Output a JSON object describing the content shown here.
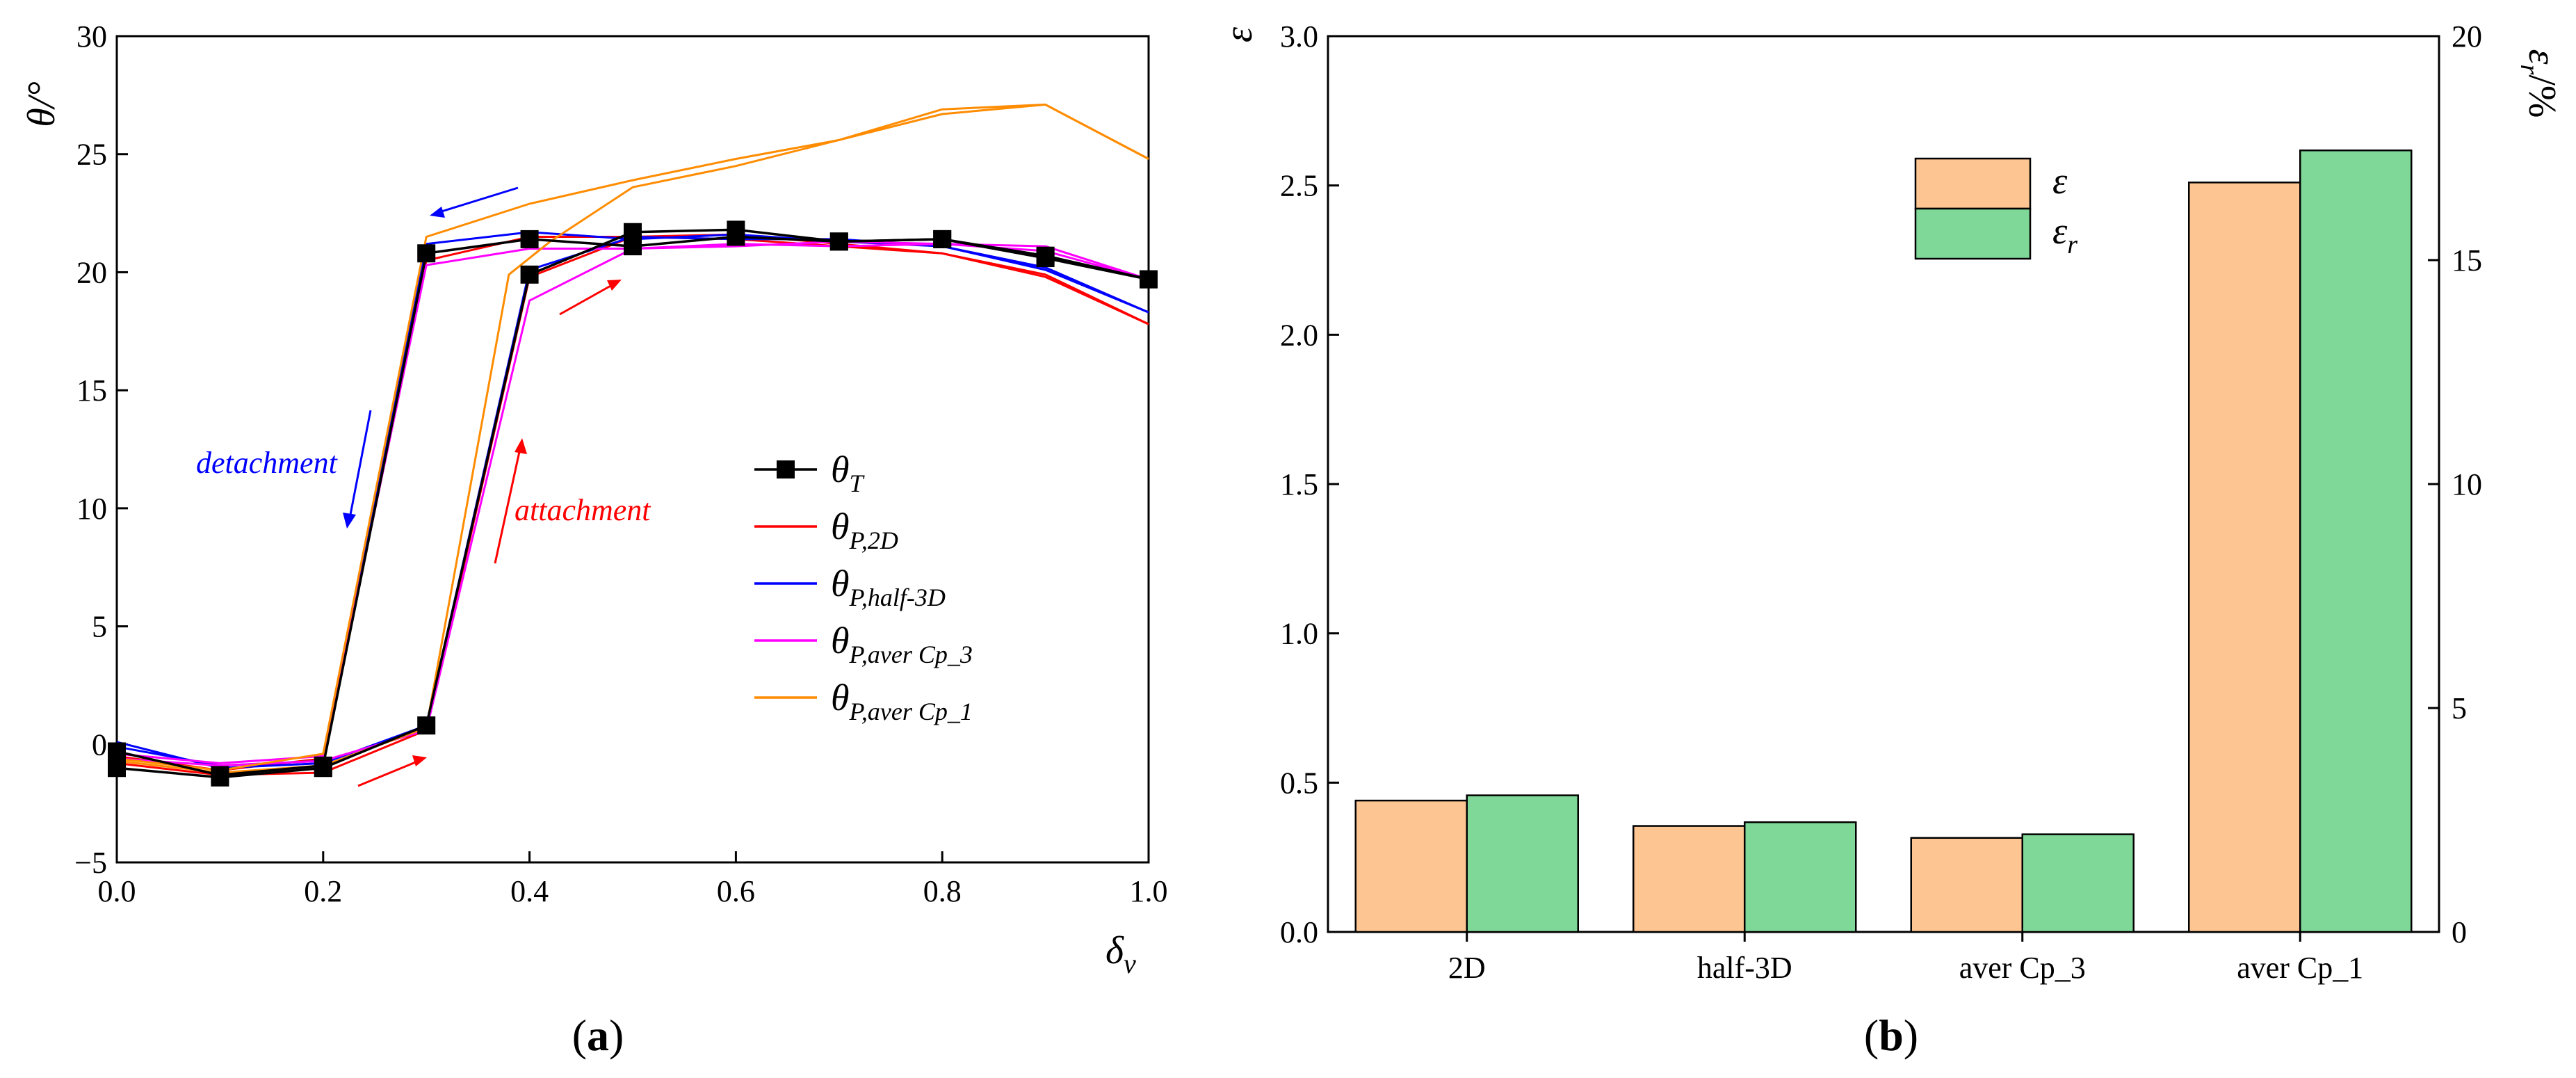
{
  "chart_data": [
    {
      "type": "line",
      "panel_label": "(a)",
      "panel_letter": "a",
      "xlabel_base": "δ",
      "xlabel_sub": "v",
      "ylabel": "θ/°",
      "xlim": [
        0.0,
        1.0
      ],
      "ylim": [
        -5,
        30
      ],
      "xticks": [
        0.0,
        0.2,
        0.4,
        0.6,
        0.8,
        1.0
      ],
      "xtick_labels": [
        "0.0",
        "0.2",
        "0.4",
        "0.6",
        "0.8",
        "1.0"
      ],
      "yticks": [
        -5,
        0,
        5,
        10,
        15,
        20,
        25,
        30
      ],
      "ytick_labels": [
        "−5",
        "0",
        "5",
        "10",
        "15",
        "20",
        "25",
        "30"
      ],
      "series": [
        {
          "name": "θT",
          "label_base": "θ",
          "label_sub": "T",
          "color": "#000000",
          "marker": "square",
          "branches": [
            {
              "x": [
                0.0,
                0.1,
                0.2,
                0.3,
                0.4,
                0.5,
                0.6,
                0.7,
                0.8,
                0.9,
                1.0
              ],
              "y": [
                -1.0,
                -1.4,
                -1.0,
                0.8,
                19.9,
                21.7,
                21.8,
                21.3,
                21.4,
                20.6,
                19.7
              ]
            },
            {
              "x": [
                1.0,
                0.9,
                0.8,
                0.7,
                0.6,
                0.5,
                0.4,
                0.3,
                0.2,
                0.1,
                0.0
              ],
              "y": [
                19.7,
                20.7,
                21.4,
                21.3,
                21.5,
                21.1,
                21.4,
                20.8,
                -0.9,
                -1.3,
                -0.3
              ]
            }
          ]
        },
        {
          "name": "θP,2D",
          "label_base": "θ",
          "label_sub": "P,2D",
          "color": "#ff0000",
          "branches": [
            {
              "x": [
                0.0,
                0.1,
                0.2,
                0.3,
                0.4,
                0.5,
                0.6,
                0.7,
                0.8,
                0.9,
                1.0
              ],
              "y": [
                -0.8,
                -1.3,
                -1.2,
                0.6,
                19.8,
                21.5,
                21.6,
                21.2,
                20.8,
                19.9,
                17.8
              ]
            },
            {
              "x": [
                1.0,
                0.9,
                0.8,
                0.7,
                0.6,
                0.5,
                0.4,
                0.3,
                0.2,
                0.1,
                0.0
              ],
              "y": [
                17.8,
                19.8,
                20.8,
                21.1,
                21.4,
                21.5,
                21.5,
                20.5,
                -0.6,
                -1.1,
                -0.5
              ]
            }
          ]
        },
        {
          "name": "θP,half-3D",
          "label_base": "θ",
          "label_sub": "P,half-3D",
          "color": "#0000ff",
          "branches": [
            {
              "x": [
                0.0,
                0.1,
                0.2,
                0.3,
                0.4,
                0.5,
                0.6,
                0.7,
                0.8,
                0.9,
                1.0
              ],
              "y": [
                0.1,
                -1.0,
                -0.8,
                0.8,
                20.1,
                21.5,
                21.4,
                21.4,
                21.1,
                20.1,
                18.3
              ]
            },
            {
              "x": [
                1.0,
                0.9,
                0.8,
                0.7,
                0.6,
                0.5,
                0.4,
                0.3,
                0.2,
                0.1,
                0.0
              ],
              "y": [
                18.3,
                20.2,
                21.1,
                21.3,
                21.6,
                21.4,
                21.7,
                21.2,
                -0.7,
                -0.9,
                -0.1
              ]
            }
          ]
        },
        {
          "name": "θP,aver Cp_3",
          "label_base": "θ",
          "label_sub": "P,aver Cp_3",
          "color": "#ff00ff",
          "branches": [
            {
              "x": [
                0.0,
                0.1,
                0.2,
                0.3,
                0.4,
                0.5,
                0.6,
                0.7,
                0.8,
                0.9,
                1.0
              ],
              "y": [
                -0.6,
                -0.9,
                -0.7,
                0.6,
                18.8,
                21.0,
                21.2,
                21.1,
                21.2,
                21.1,
                19.7
              ]
            },
            {
              "x": [
                1.0,
                0.9,
                0.8,
                0.7,
                0.6,
                0.5,
                0.4,
                0.3,
                0.2,
                0.1,
                0.0
              ],
              "y": [
                19.7,
                20.9,
                21.2,
                21.3,
                21.1,
                21.0,
                21.0,
                20.3,
                -0.5,
                -0.8,
                -0.4
              ]
            }
          ]
        },
        {
          "name": "θP,aver Cp_1",
          "label_base": "θ",
          "label_sub": "P,aver Cp_1",
          "color": "#ff8c00",
          "branches": [
            {
              "x": [
                0.0,
                0.1,
                0.2,
                0.3,
                0.38,
                0.42,
                0.5,
                0.6,
                0.7,
                0.8,
                0.9,
                1.0
              ],
              "y": [
                -0.7,
                -1.2,
                -0.9,
                0.7,
                19.9,
                21.3,
                23.6,
                24.5,
                25.6,
                26.7,
                27.1,
                24.8
              ]
            },
            {
              "x": [
                1.0,
                0.9,
                0.8,
                0.7,
                0.6,
                0.5,
                0.4,
                0.3,
                0.2,
                0.1,
                0.0
              ],
              "y": [
                24.8,
                27.1,
                26.9,
                25.6,
                24.8,
                23.9,
                22.9,
                21.5,
                -0.4,
                -1.1,
                -0.6
              ]
            }
          ]
        }
      ],
      "annotations": {
        "detachment": "detachment",
        "attachment": "attachment",
        "detachment_color": "#0000ff",
        "attachment_color": "#ff0000"
      }
    },
    {
      "type": "bar",
      "panel_label": "(b)",
      "panel_letter": "b",
      "categories": [
        "2D",
        "half-3D",
        "aver Cp_3",
        "aver Cp_1"
      ],
      "ylabel": "ε",
      "ylabel_right_base": "ε",
      "ylabel_right_sub": "r",
      "ylabel_right_suffix": "/%",
      "ylim": [
        0.0,
        3.0
      ],
      "ylim_right": [
        0,
        20
      ],
      "yticks": [
        0.0,
        0.5,
        1.0,
        1.5,
        2.0,
        2.5,
        3.0
      ],
      "ytick_labels": [
        "0.0",
        "0.5",
        "1.0",
        "1.5",
        "2.0",
        "2.5",
        "3.0"
      ],
      "yticks_right": [
        0,
        5,
        10,
        15,
        20
      ],
      "ytick_labels_right": [
        "0",
        "5",
        "10",
        "15",
        "20"
      ],
      "series": [
        {
          "name": "ε",
          "label_base": "ε",
          "label_sub": "",
          "axis": "left",
          "color": "#fcc592",
          "values": [
            0.44,
            0.355,
            0.315,
            2.51
          ]
        },
        {
          "name": "εr",
          "label_base": "ε",
          "label_sub": "r",
          "axis": "right",
          "color": "#7fd897",
          "values": [
            3.05,
            2.45,
            2.18,
            17.45
          ]
        }
      ]
    }
  ]
}
